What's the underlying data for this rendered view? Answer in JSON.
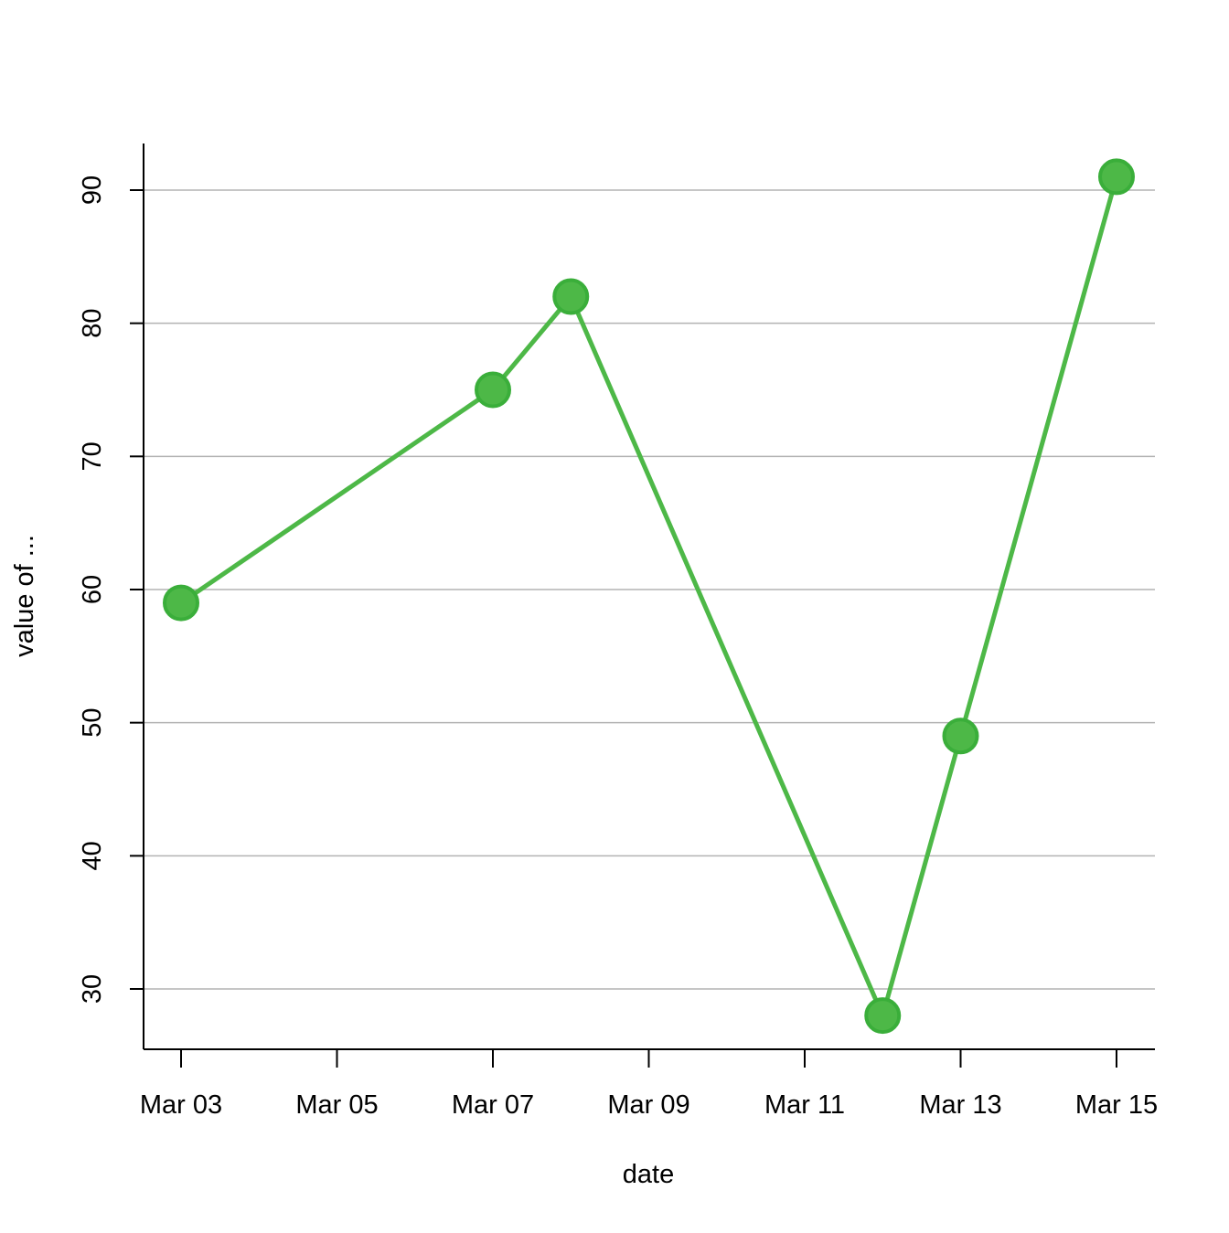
{
  "chart_data": {
    "type": "line",
    "title": "",
    "xlabel": "date",
    "ylabel": "value of ...",
    "x_ticks": [
      "Mar 03",
      "Mar 05",
      "Mar 07",
      "Mar 09",
      "Mar 11",
      "Mar 13",
      "Mar 15"
    ],
    "y_ticks": [
      30,
      40,
      50,
      60,
      70,
      80,
      90
    ],
    "xlim": [
      "Mar 02",
      "Mar 15"
    ],
    "ylim": [
      25,
      93
    ],
    "grid": "horizontal",
    "legend": "none",
    "series": [
      {
        "color": "#4DB847",
        "points": [
          {
            "date": "Mar 03",
            "value": 59
          },
          {
            "date": "Mar 07",
            "value": 75
          },
          {
            "date": "Mar 08",
            "value": 82
          },
          {
            "date": "Mar 12",
            "value": 28
          },
          {
            "date": "Mar 13",
            "value": 49
          },
          {
            "date": "Mar 15",
            "value": 91
          }
        ]
      }
    ]
  },
  "colors": {
    "series": "#4DB847",
    "marker_stroke": "#3AAE3A",
    "grid": "#B3B3B3",
    "axis": "#000000"
  }
}
